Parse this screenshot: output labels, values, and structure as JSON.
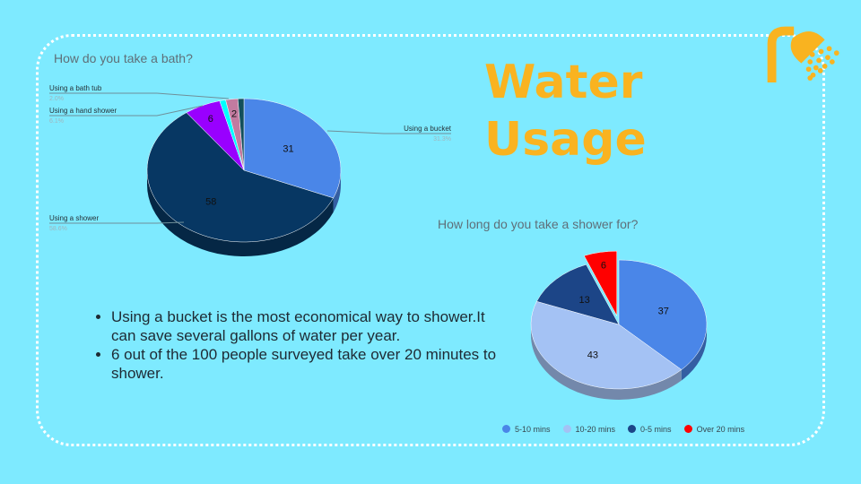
{
  "slide": {
    "title_line1": "Water",
    "title_line2": "Usage",
    "bullets": [
      "Using a bucket is the most economical way to shower.It can save several gallons of water per year.",
      "6 out of the 100 people surveyed take over 20 minutes to shower."
    ],
    "logo_icon": "shower-icon"
  },
  "chart_data": [
    {
      "type": "pie",
      "title": "How do you take a bath?",
      "slices": [
        {
          "label": "Using a bucket",
          "value": 31,
          "percent": "31.3%",
          "color": "#4a86e8"
        },
        {
          "label": "Using a shower",
          "value": 58,
          "percent": "58.6%",
          "color": "#073763"
        },
        {
          "label": "Using a hand shower",
          "value": 6,
          "percent": "6.1%",
          "color": "#9900ff"
        },
        {
          "label": "",
          "value": 1,
          "percent": "",
          "color": "#00ffff"
        },
        {
          "label": "Using a bath tub",
          "value": 2,
          "percent": "2.0%",
          "color": "#c27ba0"
        },
        {
          "label": "",
          "value": 1,
          "percent": "",
          "color": "#134f5c"
        }
      ]
    },
    {
      "type": "pie",
      "title": "How long do you take a shower for?",
      "legend": "bottom",
      "slices": [
        {
          "label": "5-10 mins",
          "value": 37,
          "color": "#4a86e8"
        },
        {
          "label": "10-20 mins",
          "value": 43,
          "color": "#a4c2f4"
        },
        {
          "label": "0-5 mins",
          "value": 13,
          "color": "#1c4587"
        },
        {
          "label": "Over 20 mins",
          "value": 6,
          "color": "#ff0000",
          "exploded": true
        }
      ]
    }
  ]
}
